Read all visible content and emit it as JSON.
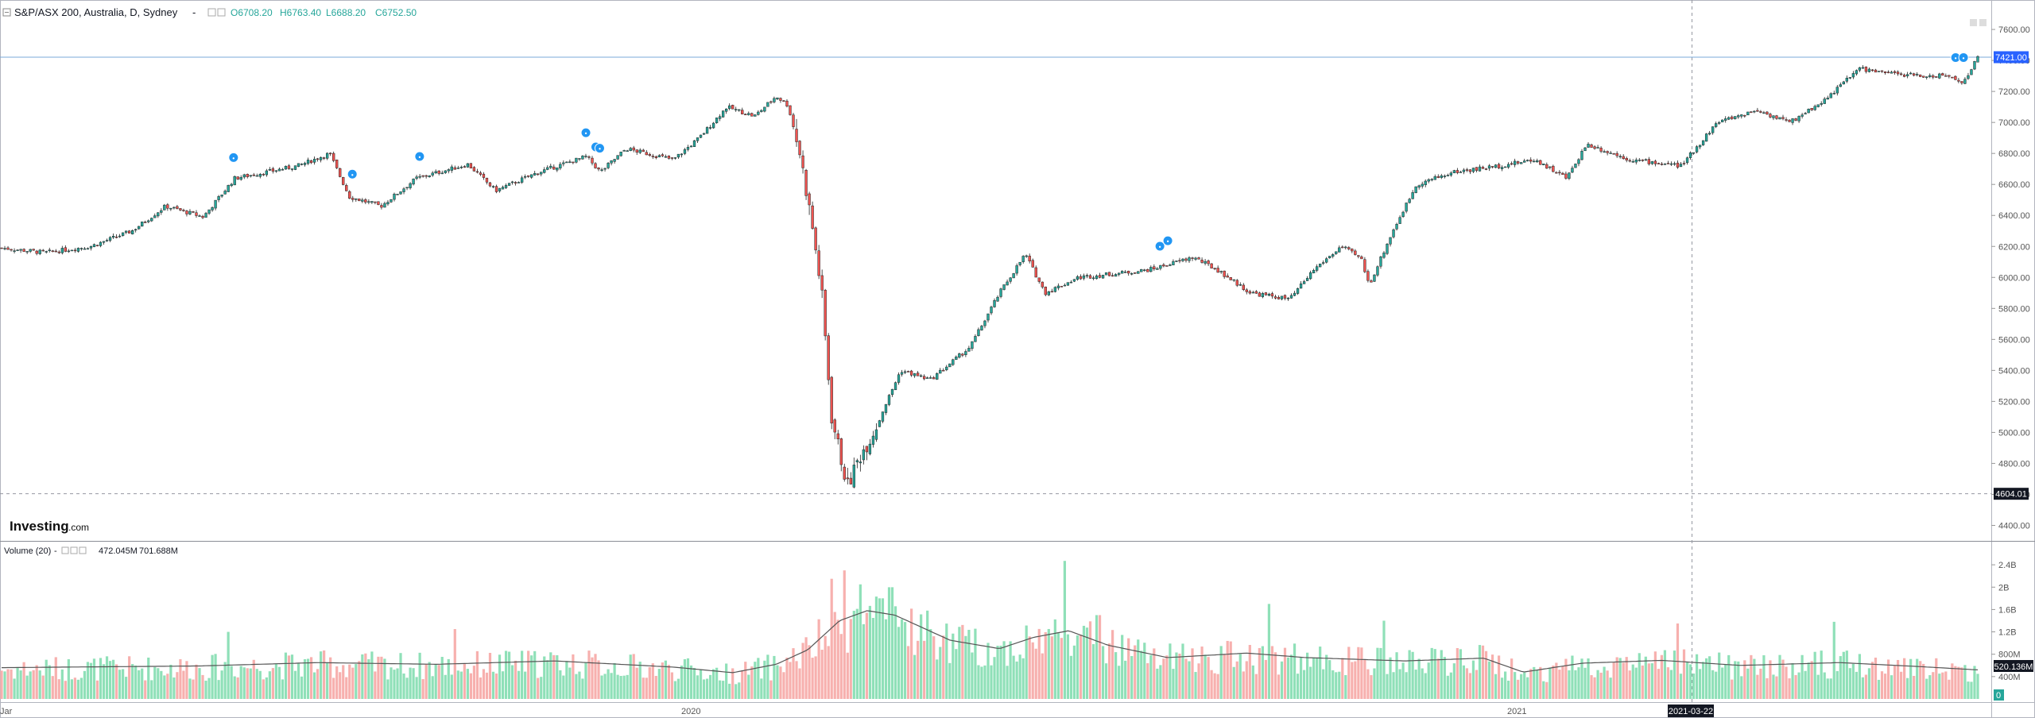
{
  "header": {
    "symbol": "S&P/ASX 200, Australia, D, Sydney",
    "dash": "-",
    "open": "O6708.20",
    "high": "H6763.40",
    "low": "L6688.20",
    "close": "C6752.50"
  },
  "volume_legend": {
    "label": "Volume (20)",
    "dash": "-",
    "value1": "472.045M",
    "value2": "701.688M"
  },
  "brand": {
    "name": "Investing",
    "suffix": ".com"
  },
  "badges": {
    "last_price": "7421.00",
    "low_price": "4604.01",
    "last_volume": "520.136M",
    "volume_zero": "0",
    "date_marker": "2021-03-22"
  },
  "colors": {
    "up": "#26a69a",
    "down": "#ef5350",
    "volume_up": "#8fe0b8",
    "volume_down": "#f7b0ae",
    "price_line": "#7aa9d8",
    "badge_blue": "#2962ff",
    "badge_dark": "#131722",
    "marker_blue": "#2196f3"
  },
  "chart_data": [
    {
      "type": "candlestick",
      "title": "S&P/ASX 200, Australia, D, Sydney",
      "yticks": [
        "7600.00",
        "7400.00",
        "7200.00",
        "7000.00",
        "6800.00",
        "6600.00",
        "6400.00",
        "6200.00",
        "6000.00",
        "5800.00",
        "5600.00",
        "5400.00",
        "5200.00",
        "5000.00",
        "4800.00",
        "4600.00",
        "4400.00"
      ],
      "ylim": [
        4300,
        7790
      ],
      "xticks": [
        "Jar",
        "2020",
        "2021"
      ],
      "last": 7421.0,
      "low_marker": 4604.01,
      "marker_date": "2021-03-22",
      "trend_keypoints": [
        {
          "t": 0.0,
          "v": 6190
        },
        {
          "t": 0.022,
          "v": 6160
        },
        {
          "t": 0.045,
          "v": 6200
        },
        {
          "t": 0.066,
          "v": 6300
        },
        {
          "t": 0.083,
          "v": 6460
        },
        {
          "t": 0.102,
          "v": 6390
        },
        {
          "t": 0.118,
          "v": 6640
        },
        {
          "t": 0.15,
          "v": 6720
        },
        {
          "t": 0.166,
          "v": 6800
        },
        {
          "t": 0.176,
          "v": 6520
        },
        {
          "t": 0.192,
          "v": 6460
        },
        {
          "t": 0.21,
          "v": 6640
        },
        {
          "t": 0.236,
          "v": 6730
        },
        {
          "t": 0.25,
          "v": 6560
        },
        {
          "t": 0.272,
          "v": 6680
        },
        {
          "t": 0.296,
          "v": 6780
        },
        {
          "t": 0.303,
          "v": 6680
        },
        {
          "t": 0.316,
          "v": 6830
        },
        {
          "t": 0.34,
          "v": 6760
        },
        {
          "t": 0.353,
          "v": 6900
        },
        {
          "t": 0.367,
          "v": 7100
        },
        {
          "t": 0.381,
          "v": 7040
        },
        {
          "t": 0.392,
          "v": 7170
        },
        {
          "t": 0.398,
          "v": 7110
        },
        {
          "t": 0.404,
          "v": 6800
        },
        {
          "t": 0.41,
          "v": 6350
        },
        {
          "t": 0.415,
          "v": 5900
        },
        {
          "t": 0.42,
          "v": 5100
        },
        {
          "t": 0.428,
          "v": 4650
        },
        {
          "t": 0.434,
          "v": 4840
        },
        {
          "t": 0.441,
          "v": 5000
        },
        {
          "t": 0.455,
          "v": 5400
        },
        {
          "t": 0.47,
          "v": 5340
        },
        {
          "t": 0.49,
          "v": 5550
        },
        {
          "t": 0.505,
          "v": 5900
        },
        {
          "t": 0.518,
          "v": 6150
        },
        {
          "t": 0.528,
          "v": 5900
        },
        {
          "t": 0.545,
          "v": 6000
        },
        {
          "t": 0.568,
          "v": 6030
        },
        {
          "t": 0.581,
          "v": 6050
        },
        {
          "t": 0.603,
          "v": 6130
        },
        {
          "t": 0.615,
          "v": 6050
        },
        {
          "t": 0.632,
          "v": 5900
        },
        {
          "t": 0.652,
          "v": 5860
        },
        {
          "t": 0.664,
          "v": 6050
        },
        {
          "t": 0.678,
          "v": 6200
        },
        {
          "t": 0.688,
          "v": 6120
        },
        {
          "t": 0.692,
          "v": 5950
        },
        {
          "t": 0.704,
          "v": 6300
        },
        {
          "t": 0.716,
          "v": 6600
        },
        {
          "t": 0.735,
          "v": 6680
        },
        {
          "t": 0.758,
          "v": 6720
        },
        {
          "t": 0.776,
          "v": 6760
        },
        {
          "t": 0.792,
          "v": 6640
        },
        {
          "t": 0.802,
          "v": 6860
        },
        {
          "t": 0.824,
          "v": 6760
        },
        {
          "t": 0.85,
          "v": 6720
        },
        {
          "t": 0.868,
          "v": 7000
        },
        {
          "t": 0.888,
          "v": 7080
        },
        {
          "t": 0.905,
          "v": 7000
        },
        {
          "t": 0.923,
          "v": 7150
        },
        {
          "t": 0.94,
          "v": 7350
        },
        {
          "t": 0.952,
          "v": 7320
        },
        {
          "t": 0.972,
          "v": 7300
        },
        {
          "t": 0.985,
          "v": 7300
        },
        {
          "t": 0.993,
          "v": 7260
        },
        {
          "t": 1.0,
          "v": 7421
        }
      ]
    },
    {
      "type": "bar",
      "title": "Volume (20)",
      "yticks": [
        "2.4B",
        "2B",
        "1.6B",
        "1.2B",
        "800M",
        "400M"
      ],
      "ylim": [
        0,
        2700
      ],
      "unit": "M",
      "last": 520.136,
      "ma_keypoints": [
        {
          "t": 0.0,
          "v": 560
        },
        {
          "t": 0.1,
          "v": 590
        },
        {
          "t": 0.16,
          "v": 650
        },
        {
          "t": 0.22,
          "v": 620
        },
        {
          "t": 0.28,
          "v": 680
        },
        {
          "t": 0.34,
          "v": 570
        },
        {
          "t": 0.37,
          "v": 470
        },
        {
          "t": 0.392,
          "v": 620
        },
        {
          "t": 0.408,
          "v": 880
        },
        {
          "t": 0.424,
          "v": 1400
        },
        {
          "t": 0.438,
          "v": 1580
        },
        {
          "t": 0.452,
          "v": 1500
        },
        {
          "t": 0.48,
          "v": 1050
        },
        {
          "t": 0.505,
          "v": 900
        },
        {
          "t": 0.522,
          "v": 1100
        },
        {
          "t": 0.54,
          "v": 1220
        },
        {
          "t": 0.56,
          "v": 960
        },
        {
          "t": 0.59,
          "v": 740
        },
        {
          "t": 0.63,
          "v": 820
        },
        {
          "t": 0.66,
          "v": 740
        },
        {
          "t": 0.71,
          "v": 680
        },
        {
          "t": 0.75,
          "v": 730
        },
        {
          "t": 0.77,
          "v": 480
        },
        {
          "t": 0.8,
          "v": 640
        },
        {
          "t": 0.84,
          "v": 690
        },
        {
          "t": 0.88,
          "v": 600
        },
        {
          "t": 0.93,
          "v": 650
        },
        {
          "t": 0.97,
          "v": 580
        },
        {
          "t": 1.0,
          "v": 520
        }
      ],
      "spikes": [
        {
          "t": 0.42,
          "v": 2150
        },
        {
          "t": 0.426,
          "v": 2300
        },
        {
          "t": 0.434,
          "v": 2050
        },
        {
          "t": 0.445,
          "v": 1800
        },
        {
          "t": 0.538,
          "v": 2470
        },
        {
          "t": 0.555,
          "v": 1500
        },
        {
          "t": 0.641,
          "v": 1700
        },
        {
          "t": 0.7,
          "v": 1400
        },
        {
          "t": 0.848,
          "v": 1350
        },
        {
          "t": 0.927,
          "v": 1380
        },
        {
          "t": 0.23,
          "v": 1250
        },
        {
          "t": 0.115,
          "v": 1200
        }
      ]
    }
  ]
}
